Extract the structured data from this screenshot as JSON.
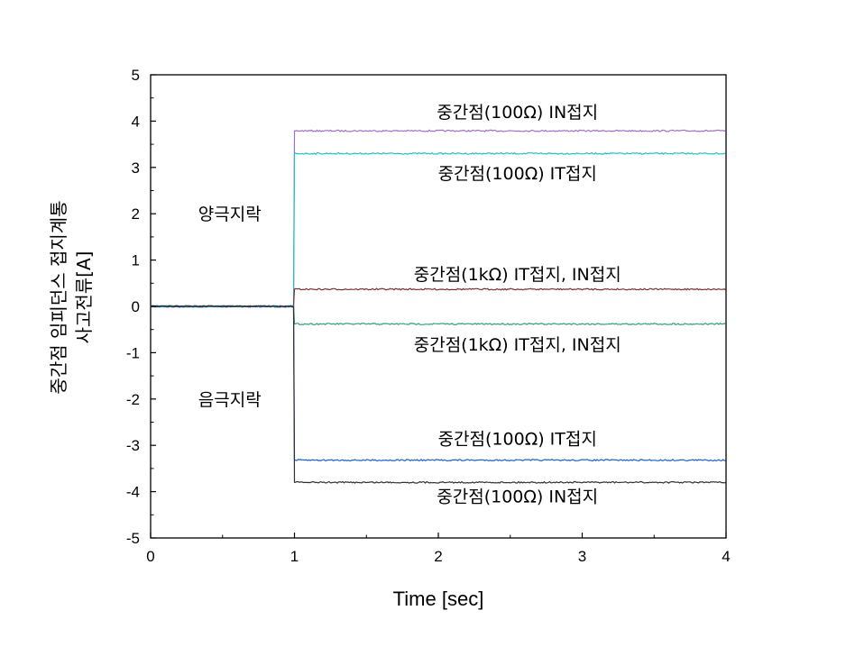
{
  "chart_data": {
    "type": "line",
    "xlabel": "Time [sec]",
    "ylabel_lines": [
      "중간점 임피던스 접지계통",
      "사고전류[A]"
    ],
    "xlim": [
      0,
      4
    ],
    "ylim": [
      -5,
      5
    ],
    "x_ticks": [
      0,
      1,
      2,
      3,
      4
    ],
    "y_ticks": [
      5,
      4,
      3,
      2,
      1,
      0,
      -1,
      -2,
      -3,
      -4,
      -5
    ],
    "fault_time": 1,
    "grid": false,
    "series": [
      {
        "color": "#a070c8",
        "x": [
          0,
          1,
          1,
          4
        ],
        "values": [
          0,
          0,
          3.79,
          3.79
        ]
      },
      {
        "color": "#20c0c8",
        "x": [
          0,
          1,
          1,
          4
        ],
        "values": [
          0,
          0,
          3.3,
          3.3
        ]
      },
      {
        "color": "#7a3030",
        "x": [
          0,
          1,
          1,
          4
        ],
        "values": [
          0,
          0,
          0.37,
          0.37
        ]
      },
      {
        "color": "#30a070",
        "x": [
          0,
          1,
          1,
          4
        ],
        "values": [
          0,
          0,
          -0.38,
          -0.38
        ]
      },
      {
        "color": "#1a5fc8",
        "x": [
          0,
          1,
          1,
          4
        ],
        "values": [
          0,
          0,
          -3.32,
          -3.32
        ]
      },
      {
        "color": "#303030",
        "x": [
          0,
          1,
          1,
          4
        ],
        "values": [
          0,
          0,
          -3.8,
          -3.8
        ]
      }
    ],
    "annotations": [
      {
        "text": "중간점(100Ω) IN접지",
        "x": 2.55,
        "y": 4.2
      },
      {
        "text": "중간점(100Ω) IT접지",
        "x": 2.55,
        "y": 2.88
      },
      {
        "text": "양극지락",
        "x": 0.55,
        "y": 2.0
      },
      {
        "text": "중간점(1kΩ) IT접지, IN접지",
        "x": 2.55,
        "y": 0.7
      },
      {
        "text": "중간점(1kΩ) IT접지, IN접지",
        "x": 2.55,
        "y": -0.82
      },
      {
        "text": "음극지락",
        "x": 0.55,
        "y": -2.0
      },
      {
        "text": "중간점(100Ω) IT접지",
        "x": 2.55,
        "y": -2.85
      },
      {
        "text": "중간점(100Ω) IN접지",
        "x": 2.55,
        "y": -4.1
      }
    ]
  }
}
